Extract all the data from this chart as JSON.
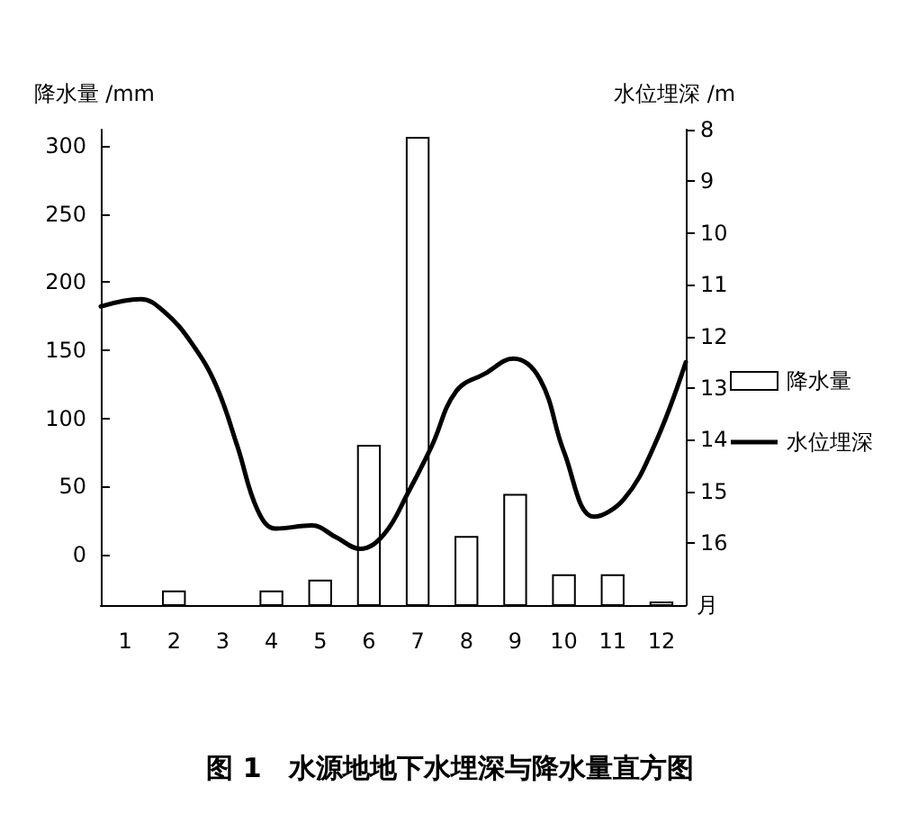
{
  "chart_data": {
    "type": "bar",
    "title": "图 1　水源地地下水埋深与降水量直方图",
    "xlabel": "月",
    "ylabel": "降水量 /mm",
    "y2label": "水位埋深 /m",
    "x": [
      2,
      4,
      5,
      6,
      7,
      8,
      9,
      10,
      11,
      12
    ],
    "xlim": [
      0.5,
      12.5
    ],
    "xticks": [
      1,
      2,
      3,
      4,
      5,
      6,
      7,
      8,
      9,
      10,
      11,
      12
    ],
    "ylim": [
      -37,
      312
    ],
    "yticks": [
      0,
      50,
      100,
      150,
      200,
      250,
      300
    ],
    "y2lim": [
      17.2,
      8
    ],
    "y2ticks": [
      8,
      9,
      10,
      11,
      12,
      13,
      14,
      15,
      16
    ],
    "series": [
      {
        "name": "降水量",
        "color": "#ffffff",
        "base": [
          -37,
          -37,
          -37,
          -37,
          -37,
          -37,
          -37,
          -37,
          -37,
          -37
        ],
        "values": [
          10,
          10,
          18,
          117,
          343,
          50,
          81,
          22,
          22,
          2
        ]
      },
      {
        "name": "水位埋深",
        "type": "line",
        "axis": "y2",
        "color": "#000000",
        "marker": "none",
        "line_style": "solid",
        "x": [
          0.5,
          1.32,
          1.82,
          2.37,
          2.86,
          3.3,
          3.72,
          4.09,
          4.83,
          5.33,
          5.82,
          6.31,
          6.8,
          7.29,
          7.79,
          8.4,
          8.96,
          9.51,
          10.0,
          10.62,
          11.23,
          11.85,
          12.5
        ],
        "values": [
          11.42,
          11.28,
          11.54,
          12.14,
          12.94,
          14.12,
          15.37,
          15.72,
          15.66,
          15.89,
          16.11,
          15.83,
          15.03,
          14.12,
          13.06,
          12.71,
          12.43,
          12.83,
          14.23,
          15.49,
          15.15,
          14.12,
          12.5
        ]
      }
    ],
    "grid": false,
    "legend": "right"
  }
}
